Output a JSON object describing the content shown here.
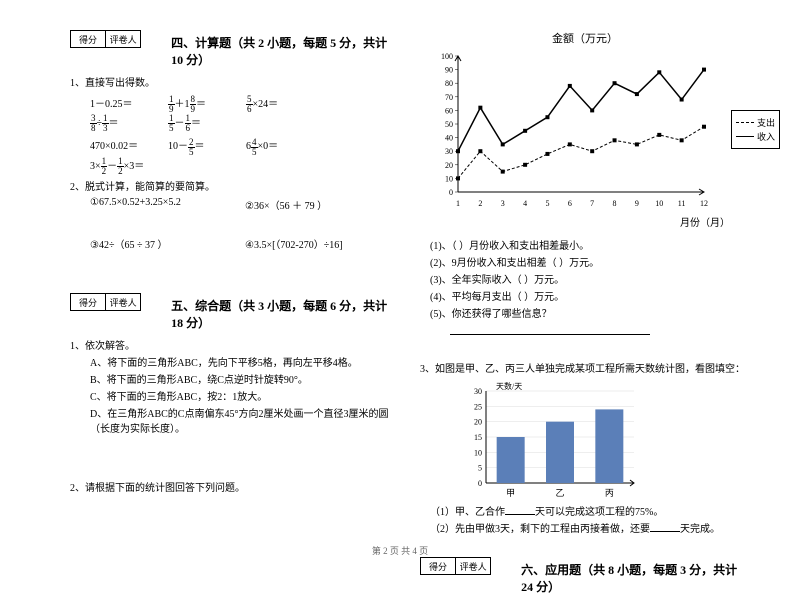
{
  "scoreBox": {
    "col1": "得分",
    "col2": "评卷人"
  },
  "section4": {
    "title": "四、计算题（共 2 小题，每题 5 分，共计 10 分）",
    "q1": "1、直接写出得数。",
    "calc1": [
      {
        "text": "1－0.25＝"
      },
      {
        "frac_a": "1/9",
        "op": "＋1",
        "frac_b": "8/9",
        "suffix": "＝"
      },
      {
        "frac_a": "5/6",
        "op": "×24＝"
      },
      {
        "frac_a": "3/8",
        "op": "÷",
        "frac_b": "1/3",
        "suffix": "＝"
      },
      {
        "frac_a": "1/5",
        "op": "－",
        "frac_b": "1/6",
        "suffix": "＝"
      }
    ],
    "calc2": [
      {
        "text": "470×0.02＝"
      },
      {
        "text": "10－",
        "frac_a": "2/5",
        "suffix": "＝"
      },
      {
        "text": "6",
        "frac_a": "4/5",
        "op": "×0＝"
      },
      {
        "text": "3×",
        "frac_a": "1/2",
        "op": "－",
        "frac_b": "1/2",
        "suffix": "×3＝"
      }
    ],
    "q2": "2、脱式计算，能简算的要简算。",
    "items2": [
      "①67.5×0.52+3.25×5.2",
      "②36×（56 ＋ 79 ）",
      "③42÷（65 ÷ 37 ）",
      "④3.5×[（702-270）÷16]"
    ]
  },
  "section5": {
    "title": "五、综合题（共 3 小题，每题 6 分，共计 18 分）",
    "q1": "1、依次解答。",
    "q1sub": [
      "A、将下面的三角形ABC，先向下平移5格，再向左平移4格。",
      "B、将下面的三角形ABC，绕C点逆时针旋转90°。",
      "C、将下面的三角形ABC，按2：1放大。",
      "D、在三角形ABC的C点南偏东45°方向2厘米处画一个直径3厘米的圆（长度为实际长度）。"
    ],
    "q2": "2、请根据下面的统计图回答下列问题。"
  },
  "lineChart": {
    "title": "金额（万元）",
    "xLabel": "月份（月）",
    "yTicks": [
      0,
      10,
      20,
      30,
      40,
      50,
      60,
      70,
      80,
      90,
      100
    ],
    "xTicks": [
      1,
      2,
      3,
      4,
      5,
      6,
      7,
      8,
      9,
      10,
      11,
      12
    ],
    "legend": {
      "dashed": "支出",
      "solid": "收入"
    },
    "income": [
      30,
      62,
      35,
      45,
      55,
      78,
      60,
      80,
      72,
      88,
      68,
      90
    ],
    "expense": [
      10,
      30,
      15,
      20,
      28,
      35,
      30,
      38,
      35,
      42,
      38,
      48
    ],
    "lineColor": "#000000",
    "bgColor": "#ffffff",
    "gridColor": "#cccccc"
  },
  "chartQuestions": [
    "(1)、（  ）月份收入和支出相差最小。",
    "(2)、9月份收入和支出相差（  ）万元。",
    "(3)、全年实际收入（  ）万元。",
    "(4)、平均每月支出（  ）万元。",
    "(5)、你还获得了哪些信息？"
  ],
  "q3": "3、如图是甲、乙、丙三人单独完成某项工程所需天数统计图，看图填空：",
  "barChart": {
    "yLabel": "天数/天",
    "yTicks": [
      0,
      5,
      10,
      15,
      20,
      25,
      30
    ],
    "categories": [
      "甲",
      "乙",
      "丙"
    ],
    "values": [
      15,
      20,
      24
    ],
    "barColor": "#5b7fb8",
    "barWidth": 28
  },
  "q3items": [
    {
      "pre": "（1）甲、乙合作",
      "post": "天可以完成这项工程的75%。"
    },
    {
      "pre": "（2）先由甲做3天，剩下的工程由丙接着做，还要",
      "post": "天完成。"
    }
  ],
  "section6": {
    "title": "六、应用题（共 8 小题，每题 3 分，共计 24 分）"
  },
  "footer": "第 2 页 共 4 页"
}
